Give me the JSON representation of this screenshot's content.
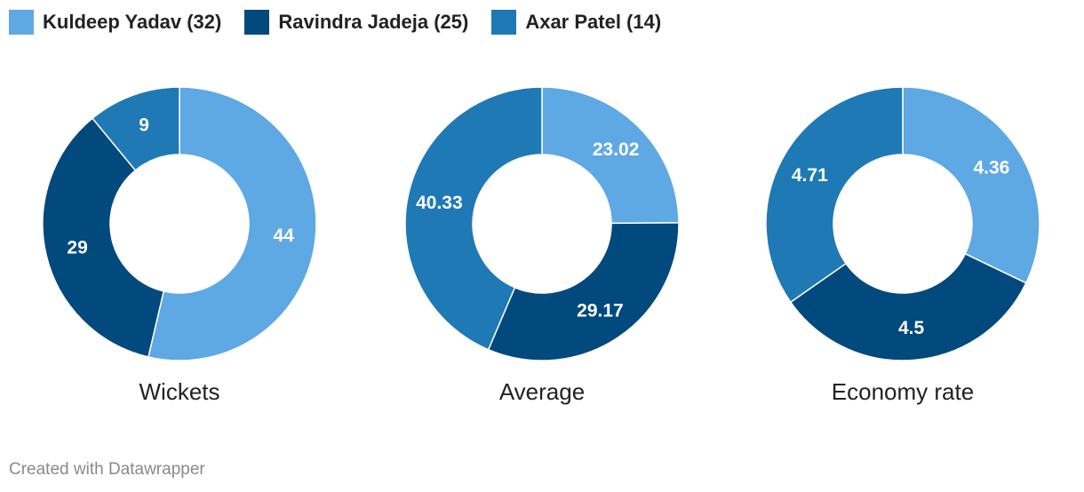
{
  "legend": [
    {
      "label": "Kuldeep Yadav (32)",
      "color": "#5ea8e4"
    },
    {
      "label": "Ravindra Jadeja (25)",
      "color": "#02497d"
    },
    {
      "label": "Axar Patel (14)",
      "color": "#1f79b5"
    }
  ],
  "chart_data": [
    {
      "type": "pie",
      "title": "Wickets",
      "categories": [
        "Kuldeep Yadav (32)",
        "Ravindra Jadeja (25)",
        "Axar Patel (14)"
      ],
      "values": [
        44,
        29,
        9
      ],
      "labels": [
        "44",
        "29",
        "9"
      ],
      "colors": [
        "#5ea8e4",
        "#02497d",
        "#1f79b5"
      ],
      "donut": true
    },
    {
      "type": "pie",
      "title": "Average",
      "categories": [
        "Kuldeep Yadav (32)",
        "Ravindra Jadeja (25)",
        "Axar Patel (14)"
      ],
      "values": [
        23.02,
        29.17,
        40.33
      ],
      "labels": [
        "23.02",
        "29.17",
        "40.33"
      ],
      "colors": [
        "#5ea8e4",
        "#02497d",
        "#1f79b5"
      ],
      "donut": true
    },
    {
      "type": "pie",
      "title": "Economy rate",
      "categories": [
        "Kuldeep Yadav (32)",
        "Ravindra Jadeja (25)",
        "Axar Patel (14)"
      ],
      "values": [
        4.36,
        4.5,
        4.71
      ],
      "labels": [
        "4.36",
        "4.5",
        "4.71"
      ],
      "colors": [
        "#5ea8e4",
        "#02497d",
        "#1f79b5"
      ],
      "donut": true
    }
  ],
  "footer": {
    "credit": "Created with Datawrapper"
  }
}
